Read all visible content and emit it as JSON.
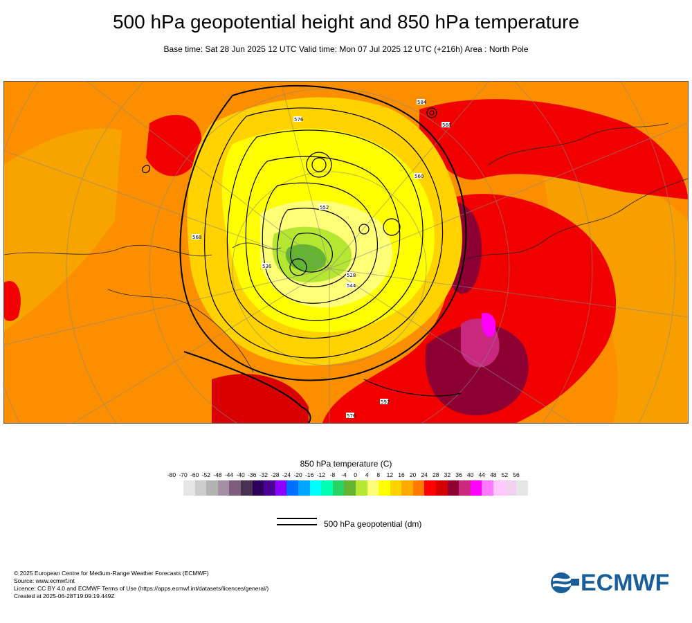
{
  "header": {
    "title": "500 hPa geopotential height and 850 hPa temperature",
    "subtitle": "Base time: Sat 28 Jun 2025 12 UTC Valid time: Mon 07 Jul 2025 12 UTC (+216h) Area : North Pole"
  },
  "map": {
    "contour_labels": [
      "576",
      "584",
      "552",
      "560",
      "544",
      "568",
      "528",
      "536",
      "592",
      "520",
      "512"
    ]
  },
  "legend": {
    "title": "850 hPa temperature (C)",
    "ticks": [
      "-80",
      "-70",
      "-60",
      "-52",
      "-48",
      "-44",
      "-40",
      "-36",
      "-32",
      "-28",
      "-24",
      "-20",
      "-16",
      "-12",
      "-8",
      "-4",
      "0",
      "4",
      "8",
      "12",
      "16",
      "20",
      "24",
      "28",
      "32",
      "36",
      "40",
      "44",
      "48",
      "52",
      "56"
    ],
    "colors": [
      "#e6e6e6",
      "#cccccc",
      "#b3b3b3",
      "#a58fa5",
      "#7d5f7d",
      "#4a3050",
      "#2d005a",
      "#4b0096",
      "#8c00ff",
      "#006eff",
      "#00a5ff",
      "#00ffff",
      "#00ffb4",
      "#28d264",
      "#64b432",
      "#b4e632",
      "#ffff78",
      "#ffff00",
      "#ffd200",
      "#ffaa00",
      "#ff7800",
      "#ff0000",
      "#d20000",
      "#8c0032",
      "#c8287d",
      "#ff00ff",
      "#ff78ff",
      "#ffc8ff",
      "#f0d2f0",
      "#e6e6e6"
    ],
    "contour_key_label": "500 hPa geopotential (dm)"
  },
  "footer": {
    "lines": [
      "© 2025 European Centre for Medium-Range Weather Forecasts (ECMWF)",
      "Source: www.ecmwf.int",
      "Licence: CC BY 4.0 and ECMWF Terms of Use (https://apps.ecmwf.int/datasets/licences/general/)",
      "Created at 2025-06-28T19:09:19.449Z"
    ]
  },
  "logo": {
    "text": "ECMWF",
    "color": "#1a5d9b"
  }
}
